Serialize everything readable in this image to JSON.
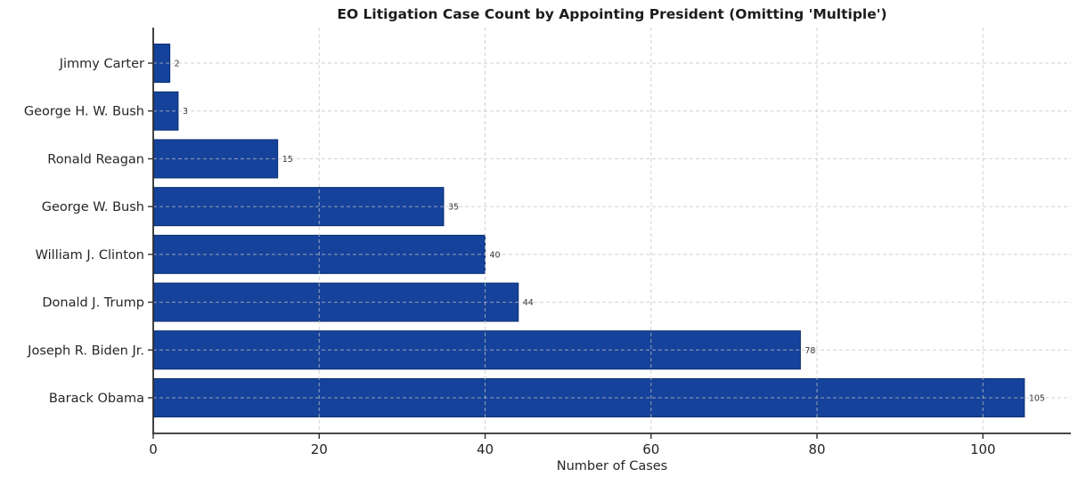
{
  "chart_data": {
    "type": "bar",
    "orientation": "horizontal",
    "title": "EO Litigation Case Count by Appointing President (Omitting 'Multiple')",
    "xlabel": "Number of Cases",
    "ylabel": "",
    "categories": [
      "Jimmy Carter",
      "George H. W. Bush",
      "Ronald Reagan",
      "George W. Bush",
      "William J. Clinton",
      "Donald J. Trump",
      "Joseph R. Biden Jr.",
      "Barack Obama"
    ],
    "values": [
      2,
      3,
      15,
      35,
      40,
      44,
      78,
      105
    ],
    "value_labels": [
      "2",
      "3",
      "15",
      "35",
      "40",
      "44",
      "78",
      "105"
    ],
    "xticks": [
      0,
      20,
      40,
      60,
      80,
      100
    ],
    "xtick_labels": [
      "0",
      "20",
      "40",
      "60",
      "80",
      "100"
    ],
    "xlim": [
      0,
      110.6
    ],
    "grid": "dashed, both axes, drawn over bars",
    "legend": "none",
    "colors": {
      "bar_fill": "#15429a",
      "bar_edge": "#0a2f73",
      "grid_line": "#c4c4c4",
      "spine": "#2e2e2e",
      "title_text": "#1c1c1c",
      "tick_text": "#262626",
      "value_text": "#3a3a3a",
      "background": "#ffffff"
    }
  }
}
